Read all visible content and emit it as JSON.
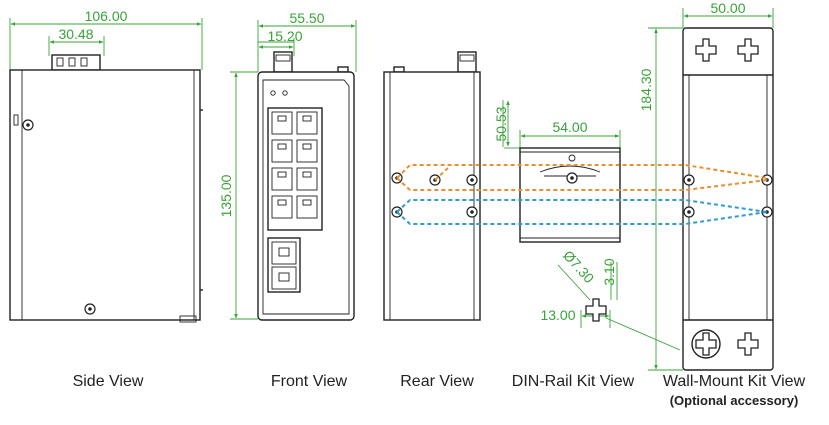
{
  "dimensions": {
    "side_width": "106.00",
    "side_connector": "30.48",
    "front_width": "55.50",
    "front_connector": "15.20",
    "height": "135.00",
    "din_rail_height": "50.53",
    "din_rail_width": "54.00",
    "wall_width": "50.00",
    "wall_height": "184.30",
    "hole_diameter": "Ø7.30",
    "hole_offset": "3.10",
    "hole_width": "13.00"
  },
  "views": {
    "side": "Side View",
    "front": "Front View",
    "rear": "Rear View",
    "din_rail": "DIN-Rail Kit View",
    "wall_mount": "Wall-Mount Kit View",
    "wall_mount_note": "(Optional accessory)"
  },
  "colors": {
    "dimension": "#39a339",
    "orange_guide": "#e8902f",
    "blue_guide": "#2f9ccf"
  }
}
